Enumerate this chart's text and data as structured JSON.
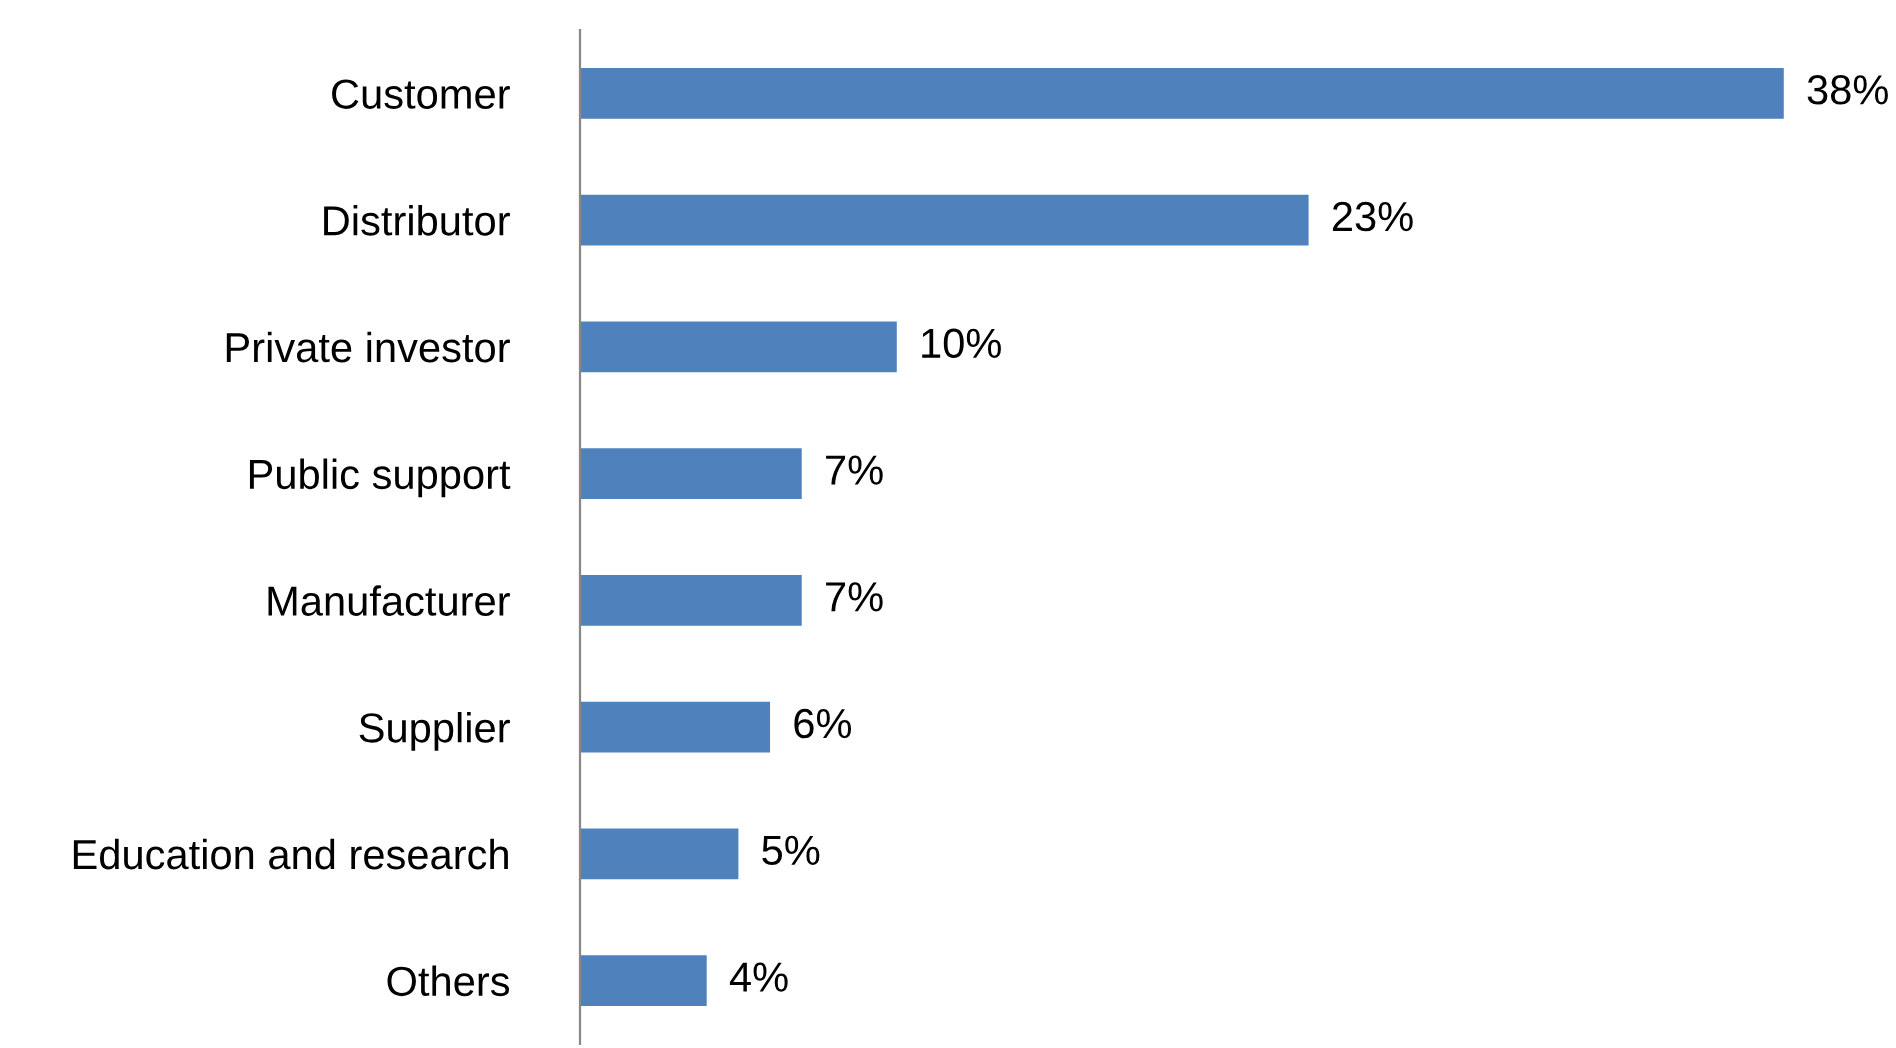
{
  "chart_data": {
    "type": "bar",
    "orientation": "horizontal",
    "categories": [
      "Customer",
      "Distributor",
      "Private investor",
      "Public support",
      "Manufacturer",
      "Supplier",
      "Education and research",
      "Others"
    ],
    "values": [
      38,
      23,
      10,
      7,
      7,
      6,
      5,
      4
    ],
    "value_labels": [
      "38%",
      "23%",
      "10%",
      "7%",
      "7%",
      "6%",
      "5%",
      "4%"
    ],
    "color": "#4f81bd",
    "tick_labels": "y"
  }
}
